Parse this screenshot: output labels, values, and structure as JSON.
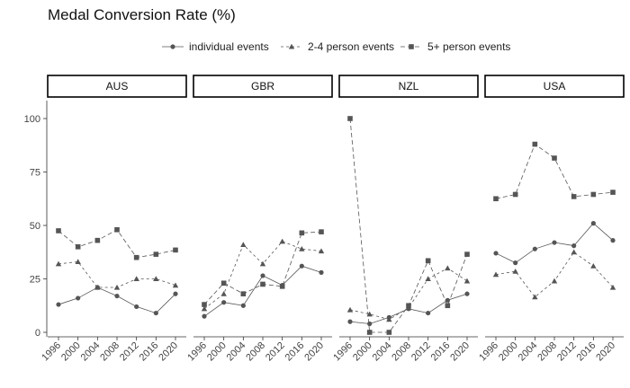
{
  "chart_data": {
    "type": "line",
    "title": "Medal Conversion Rate (%)",
    "xlabel": "",
    "ylabel": "",
    "x": [
      "1996",
      "2000",
      "2004",
      "2008",
      "2012",
      "2016",
      "2020"
    ],
    "ylim": [
      0,
      100
    ],
    "yticks": [
      "0",
      "25",
      "50",
      "75",
      "100"
    ],
    "legend_position": "top",
    "grid": false,
    "legend": [
      {
        "name": "individual events",
        "marker": "circle",
        "line": "solid"
      },
      {
        "name": "2-4 person events",
        "marker": "triangle",
        "line": "dotted"
      },
      {
        "name": "5+ person events",
        "marker": "square",
        "line": "dashed"
      }
    ],
    "colors": {
      "line": "#555555",
      "marker": "#555555",
      "axis": "#333333",
      "strip_border": "#000000"
    },
    "panels": [
      {
        "name": "AUS",
        "series": [
          {
            "name": "individual events",
            "values": [
              13,
              16,
              21,
              17,
              12,
              9,
              18
            ]
          },
          {
            "name": "2-4 person events",
            "values": [
              32,
              33,
              21,
              21,
              25,
              25,
              22
            ]
          },
          {
            "name": "5+ person events",
            "values": [
              47.5,
              40,
              43,
              48,
              35,
              36.5,
              38.5
            ]
          }
        ]
      },
      {
        "name": "GBR",
        "series": [
          {
            "name": "individual events",
            "values": [
              7.5,
              14,
              12.5,
              26.5,
              22,
              31,
              28
            ]
          },
          {
            "name": "2-4 person events",
            "values": [
              11,
              18,
              41,
              32,
              42.5,
              39,
              38
            ]
          },
          {
            "name": "5+ person events",
            "values": [
              13,
              23,
              18,
              22.5,
              21.5,
              46.5,
              47
            ]
          }
        ]
      },
      {
        "name": "NZL",
        "series": [
          {
            "name": "individual events",
            "values": [
              5,
              4,
              7,
              11,
              9,
              15,
              18
            ]
          },
          {
            "name": "2-4 person events",
            "values": [
              10.5,
              8.5,
              6,
              11.5,
              25,
              30,
              24
            ]
          },
          {
            "name": "5+ person events",
            "values": [
              100,
              0,
              0,
              12.5,
              33.5,
              12.5,
              36.5
            ]
          }
        ]
      },
      {
        "name": "USA",
        "series": [
          {
            "name": "individual events",
            "values": [
              37,
              32.5,
              39,
              42,
              40.5,
              51,
              43
            ]
          },
          {
            "name": "2-4 person events",
            "values": [
              27,
              28.5,
              16.5,
              24,
              37.5,
              31,
              21
            ]
          },
          {
            "name": "5+ person events",
            "values": [
              62.5,
              64.5,
              88,
              81.5,
              63.5,
              64.5,
              65.5
            ]
          }
        ]
      }
    ]
  }
}
